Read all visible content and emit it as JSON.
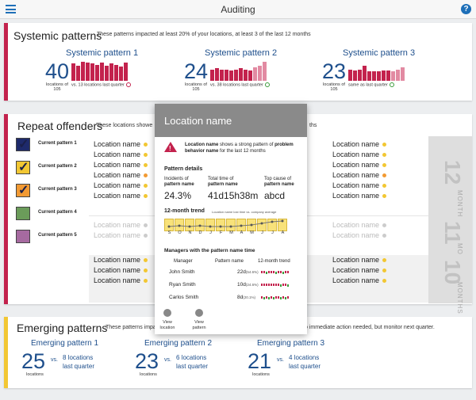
{
  "header": {
    "title": "Auditing",
    "menu_icon": "hamburger-icon",
    "help_icon": "help-icon",
    "help_glyph": "?"
  },
  "colors": {
    "accent_red": "#c3224d",
    "accent_yellow": "#f2c733",
    "brand_blue": "#1e4f8c"
  },
  "systemic": {
    "title": "Systemic patterns",
    "subtitle": "These patterns impacted at least 20% of your locations, at least 3 of the last 12 months",
    "patterns": [
      {
        "name": "Systemic pattern 1",
        "count": "40",
        "caption": "locations of 105",
        "comparison": "vs. 13 locations last quarter",
        "bars": [
          0.9,
          0.8,
          1.0,
          0.95,
          0.9,
          0.85,
          0.95,
          0.8,
          0.9,
          0.85,
          0.75,
          0.95
        ]
      },
      {
        "name": "Systemic pattern 2",
        "count": "24",
        "caption": "locations of 105",
        "comparison": "vs. 38 locations last quarter",
        "bars": [
          0.6,
          0.65,
          0.6,
          0.6,
          0.55,
          0.6,
          0.65,
          0.6,
          0.55,
          0.7,
          0.8,
          1.0
        ]
      },
      {
        "name": "Systemic pattern 3",
        "count": "23",
        "caption": "locations of 105",
        "comparison": "same as last quarter",
        "bars": [
          0.6,
          0.55,
          0.6,
          0.8,
          0.5,
          0.5,
          0.5,
          0.55,
          0.55,
          0.5,
          0.6,
          0.7
        ]
      }
    ]
  },
  "repeat": {
    "title": "Repeat offenders",
    "subtitle_left": "These locations showe",
    "subtitle_right": "ths",
    "patterns": [
      {
        "label": "Current pattern 1",
        "color": "#1e2a6b",
        "checked": true
      },
      {
        "label": "Current pattern 2",
        "color": "#f2c733",
        "checked": true
      },
      {
        "label": "Current pattern 3",
        "color": "#f29a33",
        "checked": true
      },
      {
        "label": "Current pattern 4",
        "color": "#6b9c5a",
        "checked": false
      },
      {
        "label": "Current pattern 5",
        "color": "#a66aa0",
        "checked": false
      }
    ],
    "location_label": "Location name",
    "months": [
      {
        "num": "12",
        "label": "MONTHS"
      },
      {
        "num": "11",
        "label": "MONTHS"
      },
      {
        "num": "10",
        "label": "MONTHS"
      }
    ]
  },
  "popover": {
    "title": "Location name",
    "warning_bold1": "Location name",
    "warning_text1": " shows a strong pattern of ",
    "warning_bold2": "problem behavior name",
    "warning_text2": " for the last 12 months",
    "details_heading": "Pattern details",
    "stats": [
      {
        "label1": "Incidents of",
        "label2": "pattern name",
        "value": "24.3%"
      },
      {
        "label1": "Total time of",
        "label2": "pattern name",
        "value": "41d15h38m"
      },
      {
        "label1": "Top cause of",
        "label2": "pattern name",
        "value": "abcd"
      }
    ],
    "trend_heading": "12-month trend",
    "trend_note": "Location name lost time vs. company average",
    "trend_months": [
      "S",
      "O",
      "N",
      "D",
      "J",
      "F",
      "M",
      "A",
      "M",
      "J",
      "J",
      "A"
    ],
    "managers_heading_pre": "Managers with the ",
    "managers_heading_bold": "pattern name",
    "managers_heading_post": " time",
    "manager_cols": [
      "Manager",
      "Pattern name",
      "12-month trend"
    ],
    "managers": [
      {
        "name": "John Smith",
        "days": "22d",
        "pct": "(54.6%)"
      },
      {
        "name": "Ryan Smith",
        "days": "10d",
        "pct": "(24.6%)"
      },
      {
        "name": "Carlos Smith",
        "days": "8d",
        "pct": "(20.1%)"
      }
    ],
    "buttons": [
      {
        "line1": "View",
        "line2": "location"
      },
      {
        "line1": "View",
        "line2": "pattern"
      }
    ]
  },
  "emerging": {
    "title": "Emerging patterns",
    "subtitle_left": "These patterns impac",
    "subtitle_right": "o immediate action needed, but monitor next quarter.",
    "patterns": [
      {
        "name": "Emerging pattern 1",
        "count": "25",
        "caption": "locations",
        "vs": "vs.",
        "cmp1": "8 locations",
        "cmp2": "last quarter"
      },
      {
        "name": "Emerging pattern 2",
        "count": "23",
        "caption": "locations",
        "vs": "vs.",
        "cmp1": "6 locations",
        "cmp2": "last quarter"
      },
      {
        "name": "Emerging pattern 3",
        "count": "21",
        "caption": "locations",
        "vs": "vs.",
        "cmp1": "4 locations",
        "cmp2": "last quarter"
      }
    ]
  }
}
